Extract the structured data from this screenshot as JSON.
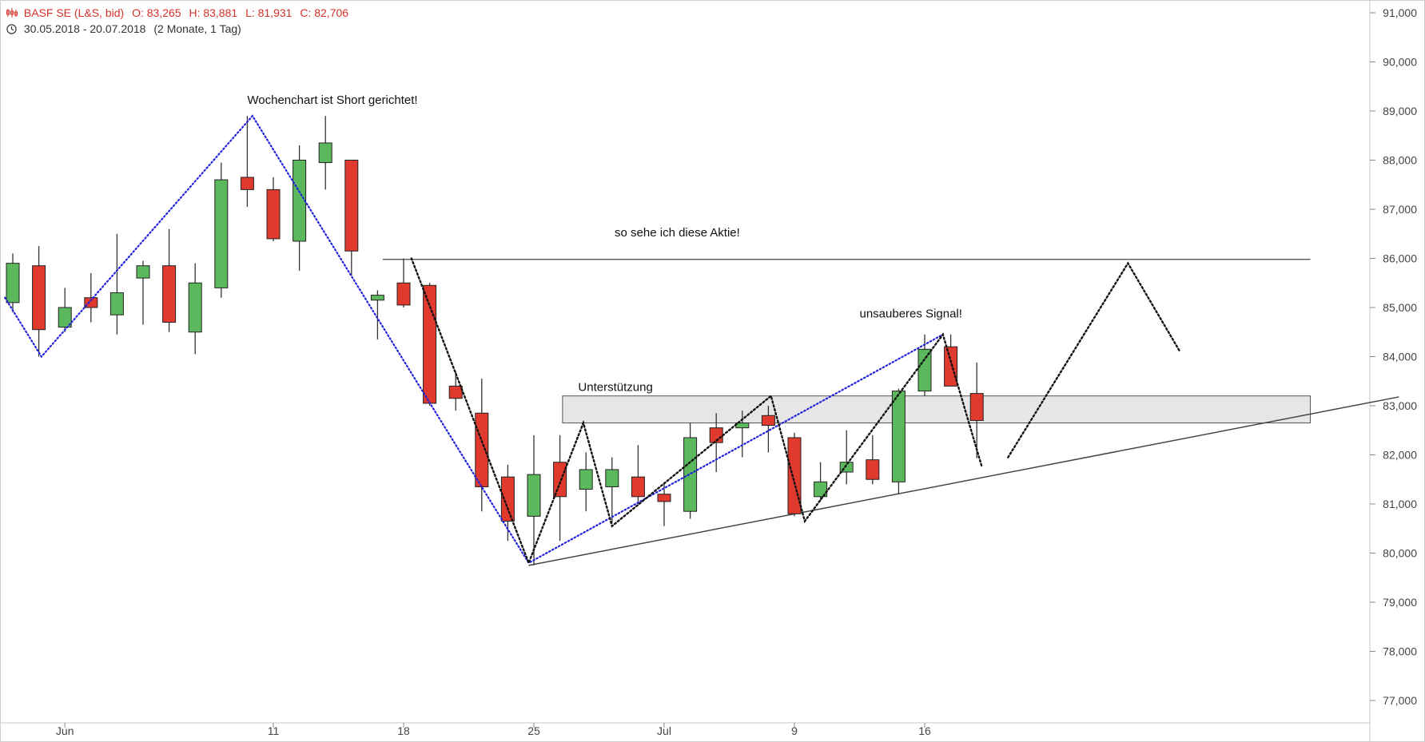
{
  "header": {
    "symbol": "BASF SE (L&S, bid)",
    "open": "O: 83,265",
    "high": "H: 83,881",
    "low": "L: 81,931",
    "close": "C: 82,706",
    "range": "30.05.2018 - 20.07.2018",
    "period": "(2 Monate, 1 Tag)"
  },
  "colors": {
    "up": "#5cb85c",
    "down": "#e03a2f",
    "blue_line": "#2222dd",
    "trend_line": "#444444"
  },
  "chart_data": {
    "type": "candlestick",
    "y_axis": {
      "min": 76.6,
      "max": 91.4,
      "ticks": [
        77,
        78,
        79,
        80,
        81,
        82,
        83,
        84,
        85,
        86,
        87,
        88,
        89,
        90,
        91
      ],
      "labels": [
        "77,000",
        "78,000",
        "79,000",
        "80,000",
        "81,000",
        "82,000",
        "83,000",
        "84,000",
        "85,000",
        "86,000",
        "87,000",
        "88,000",
        "89,000",
        "90,000",
        "91,000"
      ],
      "position": "right"
    },
    "x_labels": [
      {
        "i": 2,
        "label": "Jun"
      },
      {
        "i": 10,
        "label": "11"
      },
      {
        "i": 15,
        "label": "18"
      },
      {
        "i": 20,
        "label": "25"
      },
      {
        "i": 25,
        "label": "Jul"
      },
      {
        "i": 30,
        "label": "9"
      },
      {
        "i": 35,
        "label": "16"
      }
    ],
    "candles": [
      {
        "o": 85.1,
        "h": 86.1,
        "l": 84.9,
        "c": 85.9
      },
      {
        "o": 85.85,
        "h": 86.25,
        "l": 84.0,
        "c": 84.55
      },
      {
        "o": 84.6,
        "h": 85.4,
        "l": 84.5,
        "c": 85.0
      },
      {
        "o": 85.2,
        "h": 85.7,
        "l": 84.7,
        "c": 85.0
      },
      {
        "o": 84.85,
        "h": 86.5,
        "l": 84.45,
        "c": 85.3
      },
      {
        "o": 85.6,
        "h": 85.95,
        "l": 84.65,
        "c": 85.85
      },
      {
        "o": 85.85,
        "h": 86.6,
        "l": 84.5,
        "c": 84.7
      },
      {
        "o": 84.5,
        "h": 85.9,
        "l": 84.05,
        "c": 85.5
      },
      {
        "o": 85.4,
        "h": 87.95,
        "l": 85.2,
        "c": 87.6
      },
      {
        "o": 87.65,
        "h": 88.9,
        "l": 87.05,
        "c": 87.4
      },
      {
        "o": 87.4,
        "h": 87.65,
        "l": 86.35,
        "c": 86.4
      },
      {
        "o": 86.35,
        "h": 88.3,
        "l": 85.75,
        "c": 88.0
      },
      {
        "o": 87.95,
        "h": 88.9,
        "l": 87.4,
        "c": 88.35
      },
      {
        "o": 88.0,
        "h": 88.0,
        "l": 85.65,
        "c": 86.15
      },
      {
        "o": 85.15,
        "h": 85.35,
        "l": 84.35,
        "c": 85.25
      },
      {
        "o": 85.5,
        "h": 86.0,
        "l": 85.0,
        "c": 85.05
      },
      {
        "o": 85.45,
        "h": 85.5,
        "l": 83.0,
        "c": 83.05
      },
      {
        "o": 83.4,
        "h": 83.7,
        "l": 82.9,
        "c": 83.15
      },
      {
        "o": 82.85,
        "h": 83.55,
        "l": 80.85,
        "c": 81.35
      },
      {
        "o": 81.55,
        "h": 81.8,
        "l": 80.25,
        "c": 80.65
      },
      {
        "o": 80.75,
        "h": 82.4,
        "l": 79.75,
        "c": 81.6
      },
      {
        "o": 81.85,
        "h": 82.4,
        "l": 80.25,
        "c": 81.15
      },
      {
        "o": 81.3,
        "h": 82.05,
        "l": 80.85,
        "c": 81.7
      },
      {
        "o": 81.35,
        "h": 81.95,
        "l": 80.6,
        "c": 81.7
      },
      {
        "o": 81.55,
        "h": 82.2,
        "l": 81.0,
        "c": 81.15
      },
      {
        "o": 81.2,
        "h": 81.4,
        "l": 80.55,
        "c": 81.05
      },
      {
        "o": 80.85,
        "h": 82.65,
        "l": 80.7,
        "c": 82.35
      },
      {
        "o": 82.55,
        "h": 82.85,
        "l": 81.65,
        "c": 82.25
      },
      {
        "o": 82.55,
        "h": 82.9,
        "l": 81.95,
        "c": 82.65
      },
      {
        "o": 82.8,
        "h": 83.0,
        "l": 82.05,
        "c": 82.6
      },
      {
        "o": 82.35,
        "h": 82.45,
        "l": 80.75,
        "c": 80.8
      },
      {
        "o": 81.15,
        "h": 81.85,
        "l": 81.05,
        "c": 81.45
      },
      {
        "o": 81.65,
        "h": 82.5,
        "l": 81.4,
        "c": 81.85
      },
      {
        "o": 81.9,
        "h": 82.4,
        "l": 81.4,
        "c": 81.5
      },
      {
        "o": 81.45,
        "h": 83.35,
        "l": 81.2,
        "c": 83.3
      },
      {
        "o": 83.3,
        "h": 84.45,
        "l": 83.2,
        "c": 84.15
      },
      {
        "o": 84.2,
        "h": 84.45,
        "l": 83.4,
        "c": 83.4
      },
      {
        "o": 83.25,
        "h": 83.88,
        "l": 81.93,
        "c": 82.7
      }
    ],
    "overlays": {
      "support_zone": {
        "from_i": 21.1,
        "to_i": 49.8,
        "y_low": 82.65,
        "y_high": 83.2
      },
      "resistance_line": {
        "from_i": 14.2,
        "to_i": 49.8,
        "y": 85.98
      },
      "trend_line": {
        "from_i": 19.8,
        "from_y": 79.75,
        "to_i": 53.2,
        "to_y": 83.18
      },
      "blue_path": [
        {
          "i": -0.3,
          "y": 85.2
        },
        {
          "i": 1.1,
          "y": 84.0
        },
        {
          "i": 9.2,
          "y": 88.9
        },
        {
          "i": 19.8,
          "y": 79.8
        },
        {
          "i": 35.7,
          "y": 84.45
        }
      ],
      "black_path": [
        {
          "i": 15.3,
          "y": 86.0
        },
        {
          "i": 19.8,
          "y": 79.8
        },
        {
          "i": 21.9,
          "y": 82.65
        },
        {
          "i": 23.0,
          "y": 80.55
        },
        {
          "i": 29.1,
          "y": 83.2
        },
        {
          "i": 30.4,
          "y": 80.65
        },
        {
          "i": 35.7,
          "y": 84.45
        },
        {
          "i": 37.2,
          "y": 81.75
        }
      ],
      "projection_path": [
        {
          "i": 38.2,
          "y": 81.95
        },
        {
          "i": 42.8,
          "y": 85.9
        },
        {
          "i": 44.8,
          "y": 84.1
        }
      ]
    },
    "annotations": [
      {
        "text": "Wochenchart ist Short gerichtet!",
        "i": 9.0,
        "y": 89.15
      },
      {
        "text": "so sehe ich diese Aktie!",
        "i": 23.1,
        "y": 86.45
      },
      {
        "text": "Unterstützung",
        "i": 21.7,
        "y": 83.3
      },
      {
        "text": "unsauberes Signal!",
        "i": 32.5,
        "y": 84.8
      }
    ]
  }
}
